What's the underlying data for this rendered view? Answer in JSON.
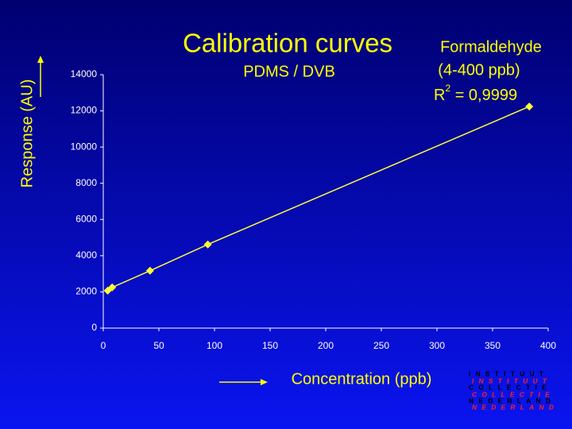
{
  "chart_data": {
    "type": "line",
    "title": "Calibration curves",
    "subtitle": "PDMS / DVB",
    "annotations": [
      "Formaldehyde",
      "(4-400 ppb)"
    ],
    "r_squared": {
      "symbol": "R",
      "exponent": "2",
      "text": " = 0,9999"
    },
    "x_label": "Concentration (ppb)",
    "y_label": "Response (AU)",
    "series": [
      {
        "color": "#ffff33",
        "x": [
          4,
          8,
          42,
          94,
          383
        ],
        "values": [
          2070,
          2250,
          3170,
          4620,
          12240
        ]
      }
    ],
    "xlim": [
      0,
      400
    ],
    "xticks": [
      0,
      50,
      100,
      150,
      200,
      250,
      300,
      350,
      400
    ],
    "ylim": [
      0,
      14000
    ],
    "yticks": [
      0,
      2000,
      4000,
      6000,
      8000,
      10000,
      12000,
      14000
    ],
    "grid": false
  },
  "logo": [
    "INSTITUUT",
    "COLLECTIE",
    "NEDERLAND"
  ]
}
